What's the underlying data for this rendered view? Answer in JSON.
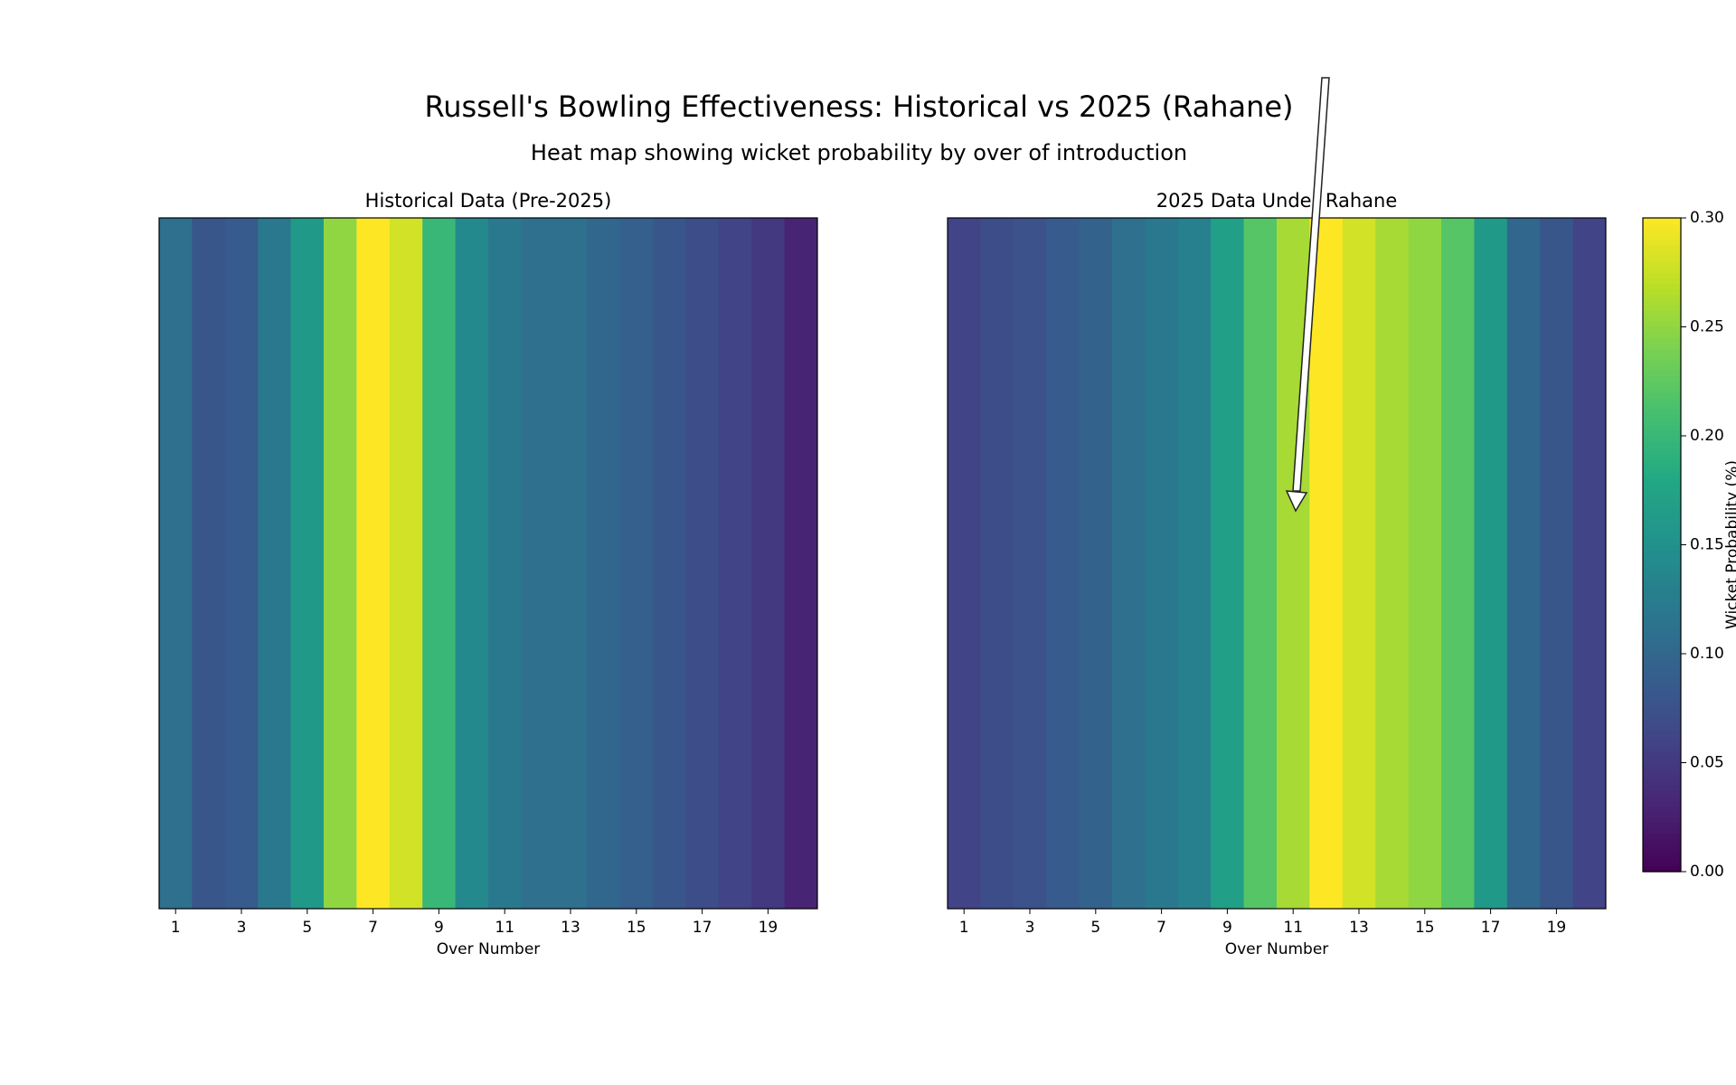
{
  "figure": {
    "title": "Russell's Bowling Effectiveness: Historical vs 2025 (Rahane)",
    "subtitle": "Heat map showing wicket probability by over of introduction",
    "colorbar": {
      "label": "Wicket Probability (%)",
      "colormap": "viridis",
      "lim": [
        0,
        0.3
      ],
      "ticks": [
        {
          "value": 0,
          "label": "0.00"
        },
        {
          "value": 0.05,
          "label": "0.05"
        },
        {
          "value": 0.1,
          "label": "0.10"
        },
        {
          "value": 0.15,
          "label": "0.15"
        },
        {
          "value": 0.2,
          "label": "0.20"
        },
        {
          "value": 0.25,
          "label": "0.25"
        },
        {
          "value": 0.3,
          "label": "0.30"
        }
      ]
    }
  },
  "chart_data": [
    {
      "type": "heatmap",
      "title": "Historical Data (Pre-2025)",
      "xlabel": "Over Number",
      "x": [
        1,
        2,
        3,
        4,
        5,
        6,
        7,
        8,
        9,
        10,
        11,
        12,
        13,
        14,
        15,
        16,
        17,
        18,
        19,
        20
      ],
      "values": [
        0.11,
        0.08,
        0.085,
        0.12,
        0.16,
        0.25,
        0.3,
        0.28,
        0.2,
        0.14,
        0.12,
        0.11,
        0.11,
        0.1,
        0.09,
        0.08,
        0.07,
        0.06,
        0.05,
        0.03
      ],
      "xlim": [
        0.5,
        20.5
      ],
      "xticks": [
        1,
        3,
        5,
        7,
        9,
        11,
        13,
        15,
        17,
        19
      ]
    },
    {
      "type": "heatmap",
      "title": "2025 Data Under Rahane",
      "xlabel": "Over Number",
      "x": [
        1,
        2,
        3,
        4,
        5,
        6,
        7,
        8,
        9,
        10,
        11,
        12,
        13,
        14,
        15,
        16,
        17,
        18,
        19,
        20
      ],
      "values": [
        0.06,
        0.07,
        0.075,
        0.085,
        0.095,
        0.11,
        0.12,
        0.13,
        0.17,
        0.22,
        0.26,
        0.3,
        0.28,
        0.26,
        0.25,
        0.22,
        0.16,
        0.1,
        0.08,
        0.06
      ],
      "xlim": [
        0.5,
        20.5
      ],
      "xticks": [
        1,
        3,
        5,
        7,
        9,
        11,
        13,
        15,
        17,
        19
      ]
    }
  ]
}
